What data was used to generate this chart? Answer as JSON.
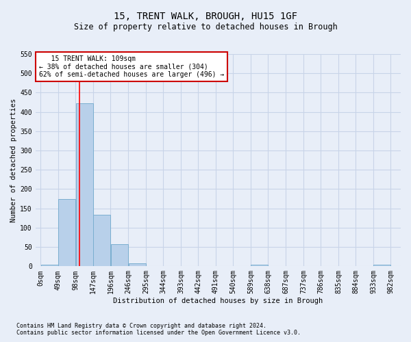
{
  "title": "15, TRENT WALK, BROUGH, HU15 1GF",
  "subtitle": "Size of property relative to detached houses in Brough",
  "xlabel": "Distribution of detached houses by size in Brough",
  "ylabel": "Number of detached properties",
  "footnote1": "Contains HM Land Registry data © Crown copyright and database right 2024.",
  "footnote2": "Contains public sector information licensed under the Open Government Licence v3.0.",
  "annotation_line1": "   15 TRENT WALK: 109sqm",
  "annotation_line2": "← 38% of detached houses are smaller (304)",
  "annotation_line3": "62% of semi-detached houses are larger (496) →",
  "bar_bins": [
    0,
    49,
    98,
    147,
    196,
    246,
    295,
    344,
    393,
    442,
    491,
    540,
    589,
    638,
    687,
    737,
    786,
    835,
    884,
    933,
    982
  ],
  "bar_values": [
    5,
    175,
    422,
    133,
    58,
    8,
    0,
    0,
    0,
    0,
    0,
    0,
    5,
    0,
    0,
    0,
    0,
    0,
    0,
    5
  ],
  "bar_color": "#b8d0ea",
  "bar_edge_color": "#7aaed0",
  "property_line_x": 109,
  "ylim": [
    0,
    550
  ],
  "xlim_left": -15,
  "xlim_right": 1010,
  "annotation_box_color": "#cc0000",
  "annotation_fill": "#ffffff",
  "grid_color": "#c8d4e8",
  "bg_color": "#e8eef8",
  "title_fontsize": 10,
  "subtitle_fontsize": 8.5,
  "tick_fontsize": 7,
  "ylabel_fontsize": 7.5,
  "xlabel_fontsize": 7.5,
  "footnote_fontsize": 6
}
